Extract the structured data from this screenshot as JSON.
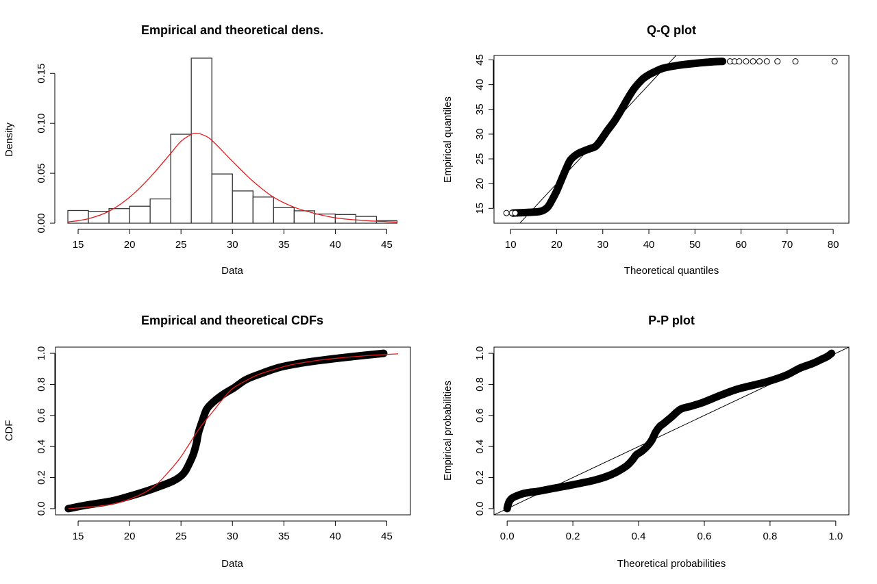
{
  "chart_data": [
    {
      "id": "density",
      "type": "bar",
      "title": "Empirical and theoretical dens.",
      "xlabel": "Data",
      "ylabel": "Density",
      "xlim": [
        12.8,
        47.3
      ],
      "ylim": [
        0,
        0.168
      ],
      "xticks": [
        15,
        20,
        25,
        30,
        35,
        40,
        45
      ],
      "xtick_labels": [
        "15",
        "20",
        "25",
        "30",
        "35",
        "40",
        "45"
      ],
      "yticks": [
        0.0,
        0.05,
        0.1,
        0.15
      ],
      "ytick_labels": [
        "0.00",
        "0.05",
        "0.10",
        "0.15"
      ],
      "grid": false,
      "histogram": {
        "bin_edges": [
          14,
          16,
          18,
          20,
          22,
          24,
          26,
          28,
          30,
          32,
          34,
          36,
          38,
          40,
          42,
          44,
          46
        ],
        "density": [
          0.0127,
          0.0119,
          0.0146,
          0.017,
          0.0243,
          0.0891,
          0.1653,
          0.0493,
          0.0323,
          0.0262,
          0.0156,
          0.0124,
          0.0092,
          0.0087,
          0.0068,
          0.0025
        ]
      },
      "theoretical_curve": {
        "color": "#e41a1c",
        "x": [
          14,
          16,
          18,
          20,
          22,
          24,
          25,
          26,
          26.4,
          27,
          28,
          30,
          32,
          34,
          36,
          38,
          40,
          42,
          44,
          46
        ],
        "y": [
          0.0012,
          0.0045,
          0.012,
          0.026,
          0.046,
          0.07,
          0.082,
          0.089,
          0.09,
          0.089,
          0.083,
          0.062,
          0.042,
          0.026,
          0.016,
          0.0098,
          0.0054,
          0.0033,
          0.002,
          0.0012
        ]
      }
    },
    {
      "id": "qq",
      "type": "scatter",
      "title": "Q-Q plot",
      "xlabel": "Theoretical quantiles",
      "ylabel": "Empirical quantiles",
      "xlim": [
        6.4,
        83.4
      ],
      "ylim": [
        12.0,
        45.9
      ],
      "xticks": [
        10,
        20,
        30,
        40,
        50,
        60,
        70,
        80
      ],
      "xtick_labels": [
        "10",
        "20",
        "30",
        "40",
        "50",
        "60",
        "70",
        "80"
      ],
      "yticks": [
        15,
        20,
        25,
        30,
        35,
        40,
        45
      ],
      "ytick_labels": [
        "15",
        "20",
        "25",
        "30",
        "35",
        "40",
        "45"
      ],
      "grid": false,
      "reference_line": {
        "intercept": 0,
        "slope": 1
      },
      "dense_points": {
        "x": [
          10.5,
          12,
          14,
          16.5,
          18,
          19,
          20,
          21,
          22,
          23,
          24.5,
          25.9,
          27,
          28.4,
          29.5,
          30.9,
          32.5,
          33.9,
          35.3,
          36.8,
          38.5,
          40,
          41.3,
          43,
          46.3,
          50,
          53.7,
          56
        ],
        "y": [
          14.05,
          14.1,
          14.2,
          14.4,
          15.2,
          16.7,
          18.5,
          20.7,
          22.9,
          24.8,
          26.0,
          26.6,
          27.0,
          27.5,
          28.7,
          30.6,
          32.6,
          34.7,
          37.0,
          39.2,
          41.0,
          42.0,
          42.6,
          43.3,
          43.9,
          44.3,
          44.6,
          44.7
        ]
      },
      "sparse_points": {
        "x": [
          9.1,
          10.3,
          11.0,
          57.6,
          58.6,
          59.6,
          61.1,
          62.6,
          64.0,
          65.6,
          67.9,
          71.8,
          80.3
        ],
        "y": [
          14.05,
          14.05,
          14.05,
          44.7,
          44.7,
          44.7,
          44.7,
          44.7,
          44.7,
          44.7,
          44.7,
          44.7,
          44.7
        ]
      }
    },
    {
      "id": "cdf",
      "type": "line",
      "title": "Empirical and theoretical CDFs",
      "xlabel": "Data",
      "ylabel": "CDF",
      "xlim": [
        12.8,
        47.3
      ],
      "ylim": [
        -0.04,
        1.04
      ],
      "xticks": [
        15,
        20,
        25,
        30,
        35,
        40,
        45
      ],
      "xtick_labels": [
        "15",
        "20",
        "25",
        "30",
        "35",
        "40",
        "45"
      ],
      "yticks": [
        0.0,
        0.2,
        0.4,
        0.6,
        0.8,
        1.0
      ],
      "ytick_labels": [
        "0.0",
        "0.2",
        "0.4",
        "0.6",
        "0.8",
        "1.0"
      ],
      "grid": false,
      "series": [
        {
          "name": "Empirical",
          "color": "#000000",
          "x": [
            14.05,
            16,
            18.3,
            20,
            21.5,
            23,
            24.3,
            25.0,
            25.4,
            25.8,
            26.2,
            26.5,
            26.7,
            27.1,
            27.5,
            28.2,
            29.2,
            30.2,
            31.3,
            32.8,
            34.6,
            36.5,
            38.7,
            41.5,
            44.7
          ],
          "y": [
            0.0,
            0.025,
            0.05,
            0.08,
            0.11,
            0.145,
            0.18,
            0.21,
            0.24,
            0.29,
            0.35,
            0.42,
            0.49,
            0.57,
            0.64,
            0.69,
            0.74,
            0.78,
            0.83,
            0.87,
            0.91,
            0.935,
            0.956,
            0.978,
            1.0
          ]
        },
        {
          "name": "Theoretical",
          "color": "#e41a1c",
          "x": [
            14.05,
            16,
            17.7,
            19,
            20.2,
            21.5,
            22.6,
            23.7,
            24.8,
            25.6,
            26.4,
            27.2,
            28.1,
            29.0,
            30.0,
            31.2,
            32.4,
            34.0,
            35.7,
            38.0,
            40.1,
            43.0,
            46.1
          ],
          "y": [
            0.0,
            0.01,
            0.022,
            0.04,
            0.066,
            0.105,
            0.154,
            0.23,
            0.316,
            0.395,
            0.478,
            0.553,
            0.625,
            0.7,
            0.772,
            0.82,
            0.86,
            0.895,
            0.926,
            0.952,
            0.968,
            0.985,
            0.997
          ]
        }
      ]
    },
    {
      "id": "pp",
      "type": "scatter",
      "title": "P-P plot",
      "xlabel": "Theoretical probabilities",
      "ylabel": "Empirical probabilities",
      "xlim": [
        -0.04,
        1.04
      ],
      "ylim": [
        -0.04,
        1.04
      ],
      "xticks": [
        0.0,
        0.2,
        0.4,
        0.6,
        0.8,
        1.0
      ],
      "xtick_labels": [
        "0.0",
        "0.2",
        "0.4",
        "0.6",
        "0.8",
        "1.0"
      ],
      "yticks": [
        0.0,
        0.2,
        0.4,
        0.6,
        0.8,
        1.0
      ],
      "ytick_labels": [
        "0.0",
        "0.2",
        "0.4",
        "0.6",
        "0.8",
        "1.0"
      ],
      "grid": false,
      "reference_line": {
        "intercept": 0,
        "slope": 1
      },
      "points": {
        "x": [
          0.0,
          0.005,
          0.014,
          0.03,
          0.048,
          0.07,
          0.09,
          0.14,
          0.2,
          0.267,
          0.318,
          0.36,
          0.38,
          0.393,
          0.41,
          0.427,
          0.44,
          0.452,
          0.465,
          0.478,
          0.5,
          0.528,
          0.56,
          0.596,
          0.65,
          0.705,
          0.789,
          0.85,
          0.89,
          0.93,
          0.958,
          0.975,
          0.987
        ],
        "y": [
          0.0,
          0.04,
          0.066,
          0.083,
          0.096,
          0.105,
          0.11,
          0.13,
          0.154,
          0.184,
          0.22,
          0.27,
          0.31,
          0.346,
          0.37,
          0.404,
          0.44,
          0.493,
          0.53,
          0.551,
          0.59,
          0.64,
          0.66,
          0.684,
          0.73,
          0.772,
          0.816,
          0.86,
          0.904,
          0.935,
          0.963,
          0.98,
          1.0
        ]
      }
    }
  ]
}
